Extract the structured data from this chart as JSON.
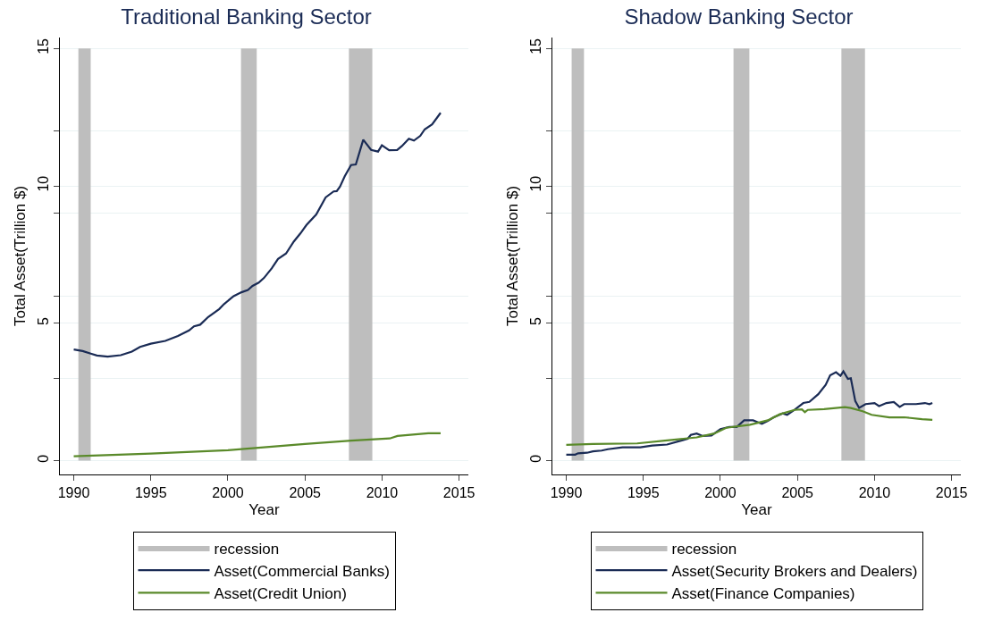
{
  "chart_data": [
    {
      "type": "line",
      "title": "Traditional Banking Sector",
      "xlabel": "Year",
      "ylabel": "Total Asset(Trillion $)",
      "xlim": [
        1989.1,
        2015.6
      ],
      "xticks": [
        1990,
        1995,
        2000,
        2005,
        2010,
        2015
      ],
      "ylim": [
        -0.5,
        15.4
      ],
      "yticks": [
        0,
        {
          "value": 3,
          "label": null
        },
        5,
        {
          "value": 6,
          "label": null
        },
        {
          "value": 9,
          "label": null
        },
        10,
        {
          "value": 12,
          "label": null
        },
        15
      ],
      "grid": "y",
      "legend": "bottom",
      "marker": "none",
      "line_style": "solid",
      "bands": [
        {
          "axis": "x",
          "from": 1990.3,
          "to": 1991.1,
          "label": "recession",
          "color": "#bebebe"
        },
        {
          "axis": "x",
          "from": 2000.85,
          "to": 2001.87,
          "color": "#bebebe"
        },
        {
          "axis": "x",
          "from": 2007.85,
          "to": 2009.37,
          "color": "#bebebe"
        }
      ],
      "series": [
        {
          "name": "Asset(Commercial Banks)",
          "color": "#1a2b55",
          "x": [
            1990,
            1990.58,
            1991.1,
            1991.5,
            1992.2,
            1993.05,
            1993.77,
            1994.3,
            1995,
            1995.94,
            1996.76,
            1997.48,
            1997.8,
            1998.2,
            1998.72,
            1999.44,
            1999.75,
            2000.37,
            2000.88,
            2001.3,
            2001.6,
            2002,
            2002.34,
            2002.84,
            2003.25,
            2003.77,
            2004.28,
            2004.7,
            2005.1,
            2005.73,
            2006.34,
            2006.86,
            2007.06,
            2007.27,
            2007.58,
            2007.99,
            2008.3,
            2008.78,
            2009.29,
            2009.74,
            2009.99,
            2010.46,
            2010.98,
            2011.29,
            2011.74,
            2012.07,
            2012.48,
            2012.77,
            2013.25,
            2013.8
          ],
          "values": [
            4.05,
            3.99,
            3.9,
            3.83,
            3.79,
            3.84,
            3.97,
            4.14,
            4.26,
            4.36,
            4.54,
            4.74,
            4.89,
            4.95,
            5.23,
            5.52,
            5.7,
            5.99,
            6.13,
            6.21,
            6.36,
            6.48,
            6.65,
            7.0,
            7.34,
            7.54,
            7.98,
            8.27,
            8.58,
            8.96,
            9.58,
            9.8,
            9.81,
            9.97,
            10.35,
            10.76,
            10.78,
            11.68,
            11.31,
            11.25,
            11.48,
            11.3,
            11.31,
            11.45,
            11.72,
            11.65,
            11.82,
            12.06,
            12.24,
            12.66
          ]
        },
        {
          "name": "Asset(Credit Union)",
          "color": "#5a8a2a",
          "x": [
            1990,
            1995,
            2000,
            2005,
            2008,
            2010.5,
            2011,
            2012,
            2013,
            2013.8
          ],
          "values": [
            0.16,
            0.26,
            0.38,
            0.61,
            0.73,
            0.81,
            0.9,
            0.95,
            1.0,
            1.0
          ]
        }
      ]
    },
    {
      "type": "line",
      "title": "Shadow Banking Sector",
      "xlabel": "Year",
      "ylabel": "Total Asset(Trillion $)",
      "xlim": [
        1989.1,
        2015.6
      ],
      "xticks": [
        1990,
        1995,
        2000,
        2005,
        2010,
        2015
      ],
      "ylim": [
        -0.5,
        15.4
      ],
      "yticks": [
        0,
        {
          "value": 3,
          "label": null
        },
        5,
        {
          "value": 6,
          "label": null
        },
        {
          "value": 9,
          "label": null
        },
        10,
        {
          "value": 12,
          "label": null
        },
        15
      ],
      "grid": "y",
      "legend": "bottom",
      "marker": "none",
      "line_style": "solid",
      "bands": [
        {
          "axis": "x",
          "from": 1990.35,
          "to": 1991.15,
          "label": "recession",
          "color": "#bebebe"
        },
        {
          "axis": "x",
          "from": 2000.85,
          "to": 2001.88,
          "color": "#bebebe"
        },
        {
          "axis": "x",
          "from": 2007.85,
          "to": 2009.38,
          "color": "#bebebe"
        }
      ],
      "series": [
        {
          "name": "Asset(Security Brokers and Dealers)",
          "color": "#1a2b55",
          "x": [
            1990,
            1990.58,
            1990.77,
            1991.35,
            1991.73,
            1992.3,
            1992.7,
            1993.65,
            1994.8,
            1995.58,
            1996.54,
            1997.5,
            1997.88,
            1998.08,
            1998.46,
            1998.85,
            1999.42,
            2000,
            2000.58,
            2001.06,
            2001.54,
            2002.12,
            2002.69,
            2003.08,
            2003.46,
            2004.04,
            2004.33,
            2004.81,
            2005.38,
            2005.77,
            2006.35,
            2006.83,
            2007.12,
            2007.5,
            2007.79,
            2007.98,
            2008.27,
            2008.46,
            2008.75,
            2009,
            2009.42,
            2010,
            2010.29,
            2010.77,
            2011.25,
            2011.63,
            2011.92,
            2012.69,
            2013.27,
            2013.56,
            2013.75
          ],
          "values": [
            0.22,
            0.22,
            0.27,
            0.29,
            0.34,
            0.37,
            0.42,
            0.49,
            0.49,
            0.55,
            0.59,
            0.74,
            0.8,
            0.94,
            0.99,
            0.9,
            0.92,
            1.15,
            1.23,
            1.23,
            1.47,
            1.47,
            1.34,
            1.45,
            1.58,
            1.72,
            1.67,
            1.85,
            2.1,
            2.14,
            2.42,
            2.76,
            3.11,
            3.22,
            3.09,
            3.25,
            2.98,
            3.0,
            2.17,
            1.92,
            2.06,
            2.1,
            1.99,
            2.1,
            2.14,
            1.96,
            2.06,
            2.06,
            2.1,
            2.06,
            2.1
          ]
        },
        {
          "name": "Asset(Finance Companies)",
          "color": "#5a8a2a",
          "x": [
            1990,
            1991.73,
            1994.6,
            1996.54,
            1998.46,
            1999.6,
            2000.38,
            2001.92,
            2003.08,
            2003.85,
            2004.81,
            2005.29,
            2005.48,
            2005.67,
            2006.73,
            2008.08,
            2008.46,
            2009.23,
            2009.81,
            2010.96,
            2011.92,
            2013.08,
            2013.75
          ],
          "values": [
            0.58,
            0.61,
            0.63,
            0.74,
            0.85,
            0.99,
            1.2,
            1.31,
            1.47,
            1.69,
            1.85,
            1.87,
            1.77,
            1.85,
            1.88,
            1.95,
            1.92,
            1.8,
            1.67,
            1.58,
            1.58,
            1.51,
            1.49
          ]
        }
      ]
    }
  ]
}
